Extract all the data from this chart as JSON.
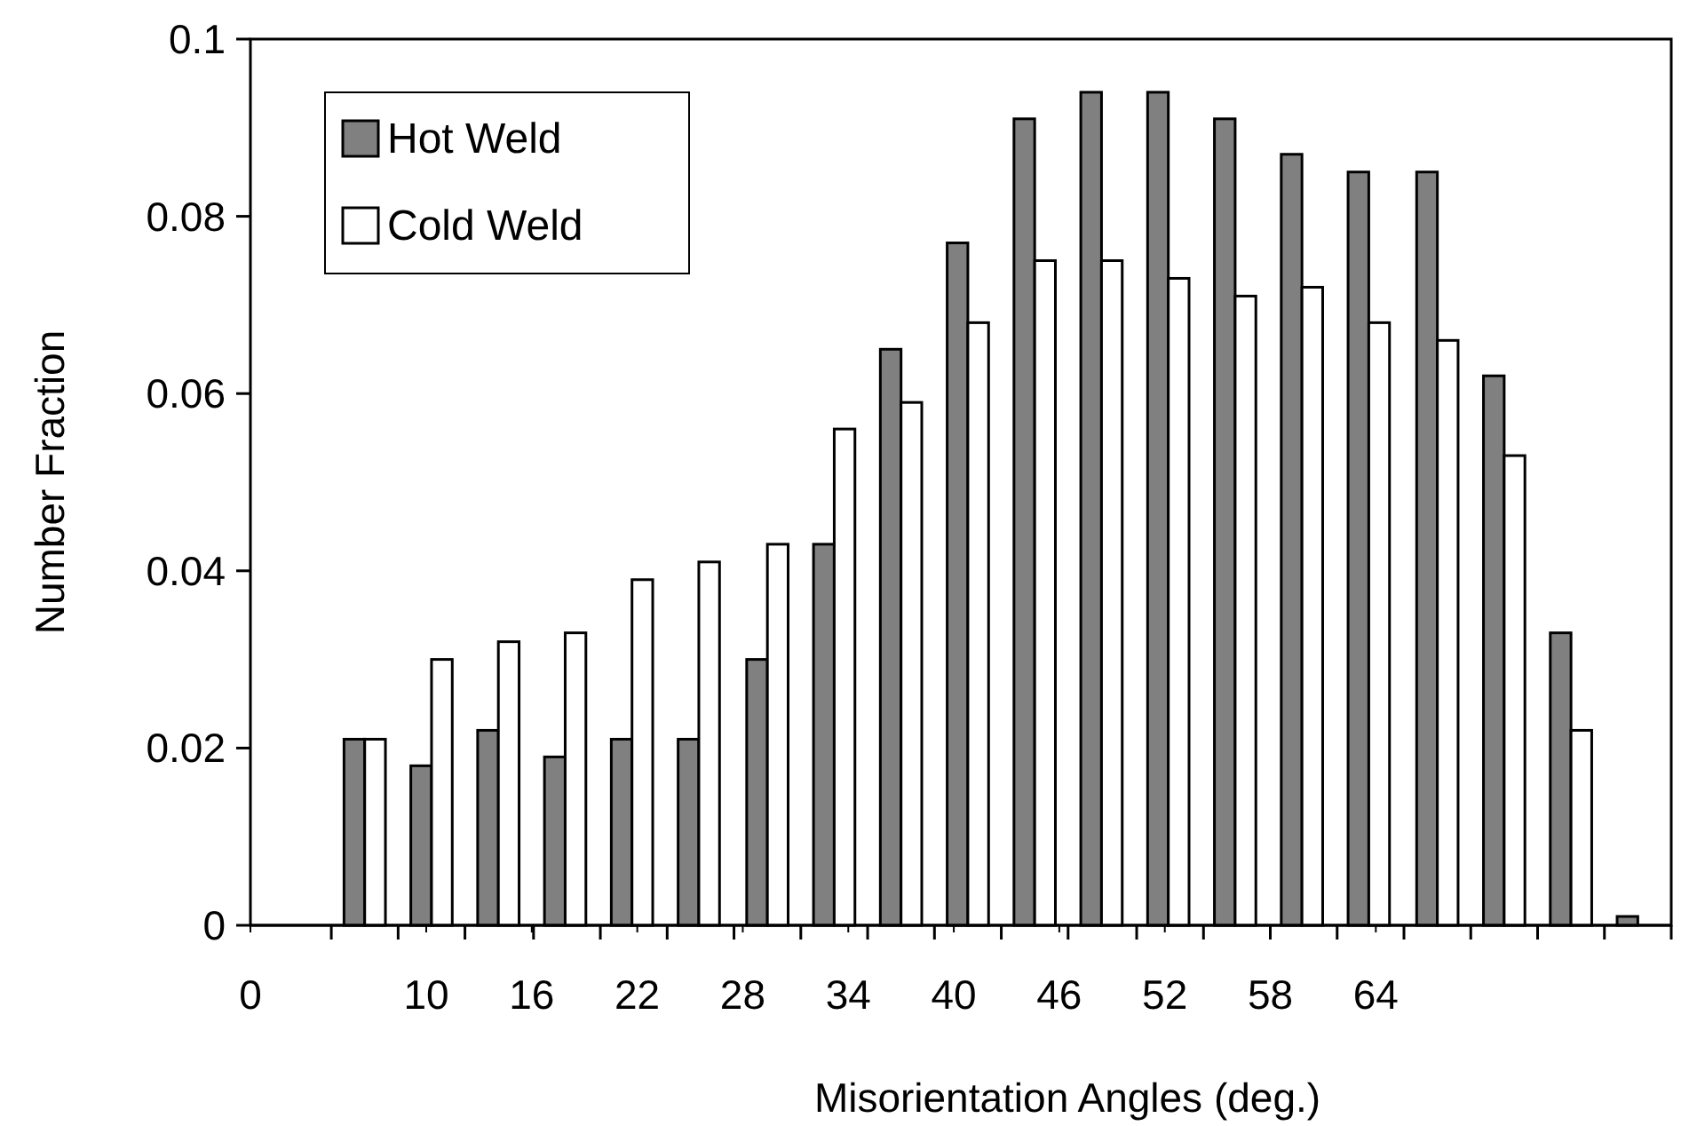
{
  "chart_data": {
    "type": "bar",
    "xlabel": "Misorientation Angles (deg.)",
    "ylabel": "Number Fraction",
    "x": [
      2.7,
      6.5,
      10.3,
      14.1,
      17.9,
      21.7,
      25.5,
      29.4,
      33.2,
      37.0,
      40.8,
      44.6,
      48.4,
      52.2,
      56.0,
      59.8,
      63.6,
      67.5,
      71.3,
      75.1,
      78.9
    ],
    "series": [
      {
        "name": "Hot Weld",
        "color": "#808080",
        "values": [
          0,
          0.021,
          0.018,
          0.022,
          0.019,
          0.021,
          0.021,
          0.03,
          0.043,
          0.065,
          0.077,
          0.091,
          0.094,
          0.094,
          0.091,
          0.087,
          0.085,
          0.085,
          0.062,
          0.033,
          0.001
        ]
      },
      {
        "name": "Cold Weld",
        "color": "#ffffff",
        "values": [
          0,
          0.021,
          0.03,
          0.032,
          0.033,
          0.039,
          0.041,
          0.043,
          0.056,
          0.059,
          0.068,
          0.075,
          0.075,
          0.073,
          0.071,
          0.072,
          0.068,
          0.066,
          0.053,
          0.022,
          0
        ]
      }
    ],
    "xlim": [
      0,
      80.8
    ],
    "xticks": [
      {
        "value": 4.6,
        "label": null
      },
      {
        "value": 8.4,
        "label": null
      },
      {
        "value": 12.2,
        "label": null
      },
      {
        "value": 16.1,
        "label": null
      },
      {
        "value": 19.9,
        "label": null
      },
      {
        "value": 23.7,
        "label": null
      },
      {
        "value": 27.5,
        "label": null
      },
      {
        "value": 31.3,
        "label": null
      },
      {
        "value": 35.1,
        "label": null
      },
      {
        "value": 38.9,
        "label": null
      },
      {
        "value": 42.7,
        "label": null
      },
      {
        "value": 46.5,
        "label": null
      },
      {
        "value": 50.4,
        "label": null
      },
      {
        "value": 54.2,
        "label": null
      },
      {
        "value": 58.0,
        "label": null
      },
      {
        "value": 61.8,
        "label": null
      },
      {
        "value": 65.6,
        "label": null
      },
      {
        "value": 69.4,
        "label": null
      },
      {
        "value": 73.2,
        "label": null
      },
      {
        "value": 77.0,
        "label": null
      },
      {
        "value": 80.8,
        "label": null
      },
      0,
      10,
      16,
      22,
      28,
      34,
      40,
      46,
      52,
      58,
      64
    ],
    "ylim": [
      0,
      0.1
    ],
    "yticks": [
      0,
      {
        "value": 0.02,
        "label": "0.02"
      },
      {
        "value": 0.04,
        "label": "0.04"
      },
      {
        "value": 0.06,
        "label": "0.06"
      },
      {
        "value": 0.08,
        "label": "0.08"
      },
      {
        "value": 0.1,
        "label": "0.1"
      }
    ],
    "legend": "top left",
    "grid": false
  }
}
